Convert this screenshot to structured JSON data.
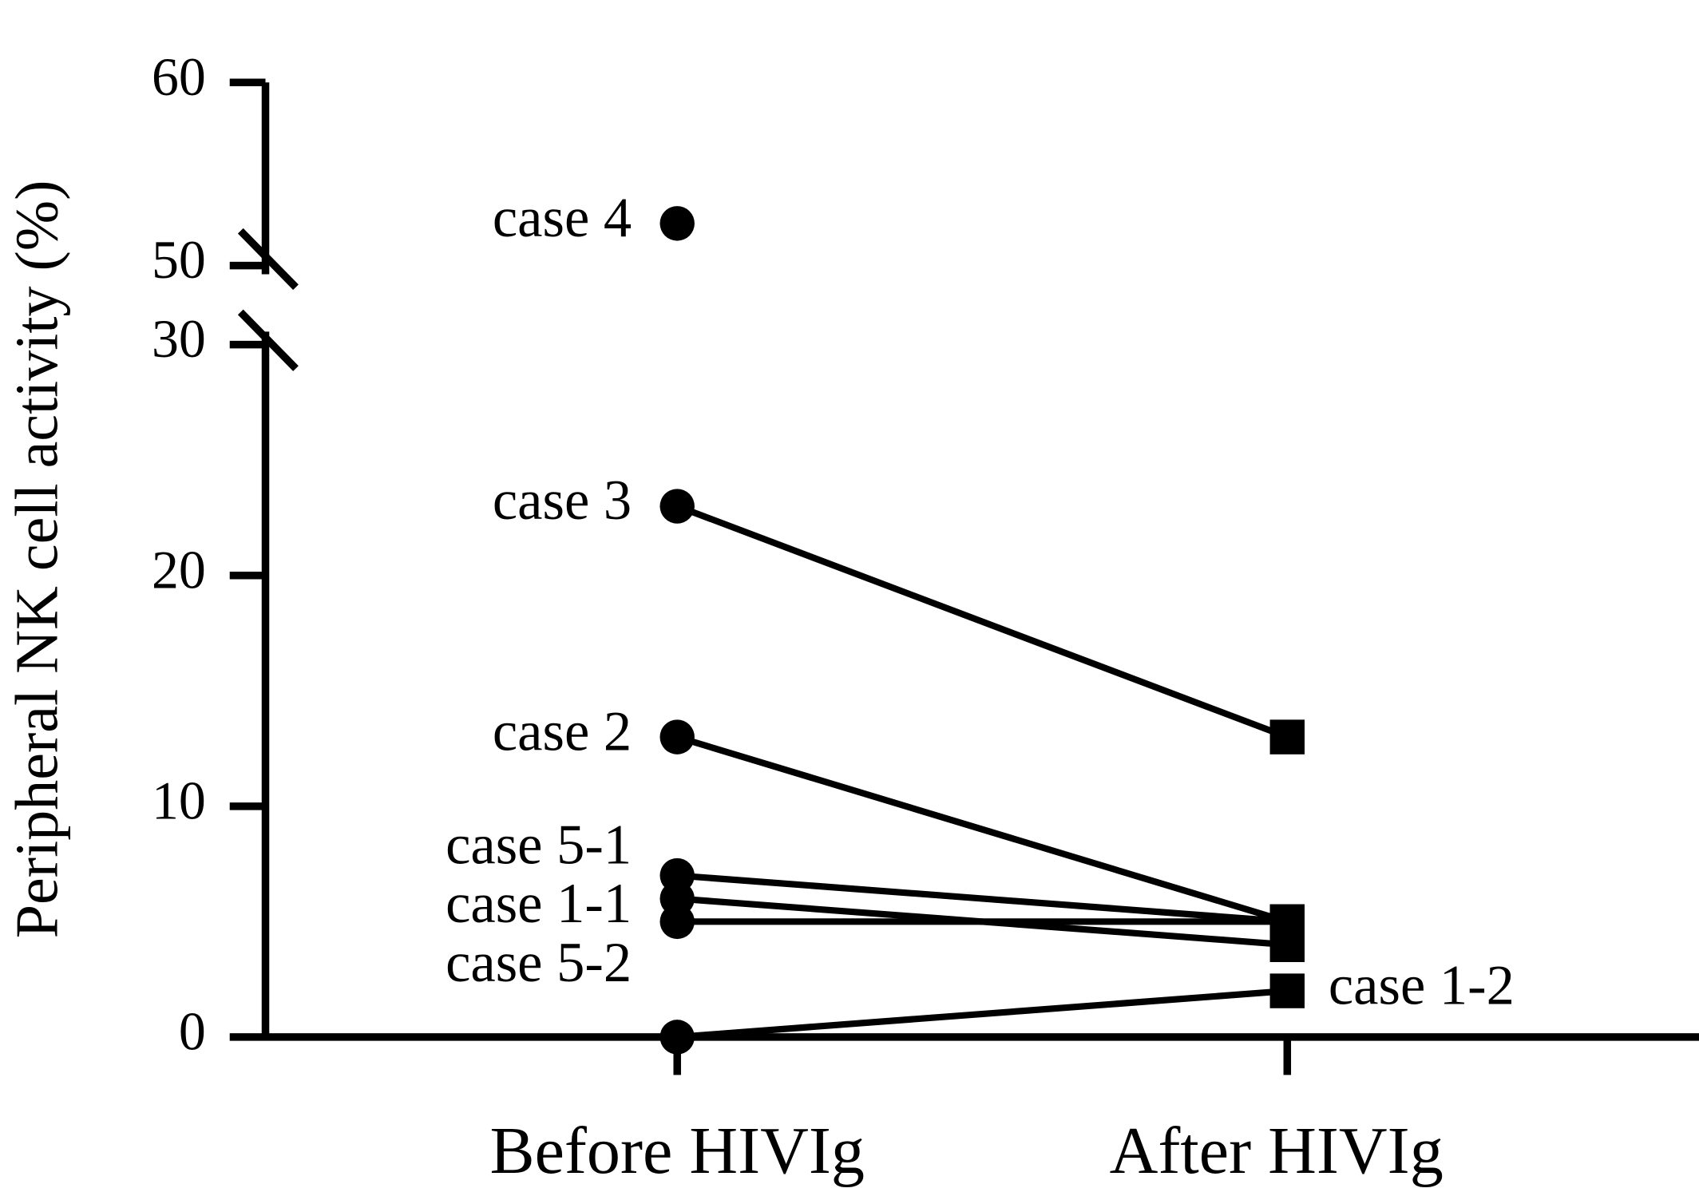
{
  "chart_data": {
    "type": "line",
    "y_label": "Peripheral NK cell activity (%)",
    "categories": [
      "Before HIVIg",
      "After HIVIg"
    ],
    "markers": [
      "circle",
      "square"
    ],
    "color": "#000000",
    "ylim": [
      0,
      60
    ],
    "axis_break": [
      30,
      50
    ],
    "yticks": [
      0,
      10,
      20,
      30,
      50,
      60
    ],
    "series": [
      {
        "name": "case 4",
        "values": [
          52.3,
          null
        ]
      },
      {
        "name": "case 3",
        "values": [
          23,
          13
        ]
      },
      {
        "name": "case 2",
        "values": [
          13,
          5
        ]
      },
      {
        "name": "case 5-1",
        "values": [
          7,
          5
        ]
      },
      {
        "name": "case 1-1",
        "values": [
          6,
          4
        ]
      },
      {
        "name": "case 5-2",
        "values": [
          5,
          5
        ]
      },
      {
        "name": "case 1-2",
        "values": [
          0,
          2
        ]
      }
    ]
  }
}
